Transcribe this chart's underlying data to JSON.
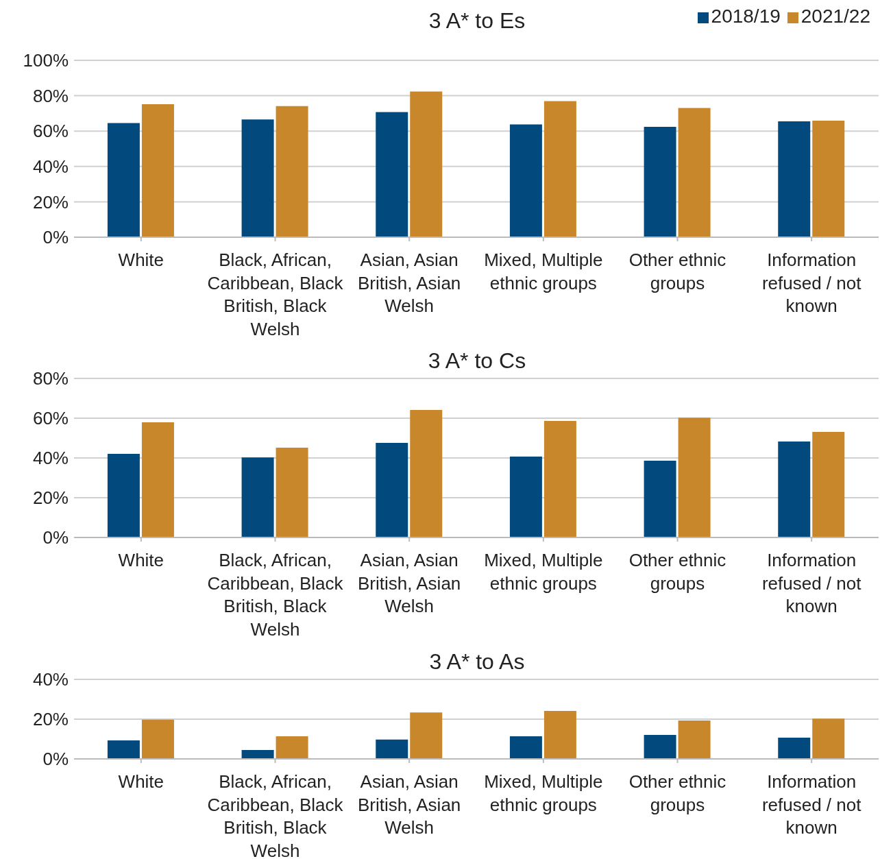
{
  "chart_data": [
    {
      "type": "bar",
      "title": "3 A* to Es",
      "categories": [
        "White",
        "Black, African, Caribbean, Black British, Black Welsh",
        "Asian, Asian British, Asian Welsh",
        "Mixed, Multiple ethnic groups",
        "Other ethnic groups",
        "Information refused / not known"
      ],
      "series": [
        {
          "name": "2018/19",
          "color": "#024a7d",
          "values": [
            64.5,
            66.6,
            70.7,
            63.8,
            62.4,
            65.5
          ]
        },
        {
          "name": "2021/22",
          "color": "#c8872b",
          "values": [
            75.2,
            74.1,
            82.4,
            76.9,
            73.1,
            65.9
          ]
        }
      ],
      "ylim": [
        0,
        100
      ],
      "yticks": [
        {
          "value": 0,
          "label": "0%"
        },
        {
          "value": 20,
          "label": "20%"
        },
        {
          "value": 40,
          "label": "40%"
        },
        {
          "value": 60,
          "label": "60%"
        },
        {
          "value": 80,
          "label": "80%"
        },
        {
          "value": 100,
          "label": "100%"
        }
      ],
      "grid": "y",
      "legend": "top right"
    },
    {
      "type": "bar",
      "title": "3 A* to Cs",
      "categories": [
        "White",
        "Black, African, Caribbean, Black British, Black Welsh",
        "Asian, Asian British, Asian Welsh",
        "Mixed, Multiple ethnic groups",
        "Other ethnic groups",
        "Information refused / not known"
      ],
      "series": [
        {
          "color": "#024a7d",
          "values": [
            42.1,
            40.3,
            47.6,
            40.7,
            38.6,
            48.3
          ]
        },
        {
          "color": "#c8872b",
          "values": [
            57.9,
            45.2,
            64.1,
            58.6,
            60.3,
            53.1
          ]
        }
      ],
      "ylim": [
        0,
        80
      ],
      "yticks": [
        {
          "value": 0,
          "label": "0%"
        },
        {
          "value": 20,
          "label": "20%"
        },
        {
          "value": 40,
          "label": "40%"
        },
        {
          "value": 60,
          "label": "60%"
        },
        {
          "value": 80,
          "label": "80%"
        }
      ],
      "grid": "y",
      "legend": false
    },
    {
      "type": "bar",
      "title": "3 A* to As",
      "categories": [
        "White",
        "Black, African, Caribbean, Black British, Black Welsh",
        "Asian, Asian British, Asian Welsh",
        "Mixed, Multiple ethnic groups",
        "Other ethnic groups",
        "Information refused / not known"
      ],
      "series": [
        {
          "color": "#024a7d",
          "values": [
            9.3,
            4.5,
            9.7,
            11.4,
            12.1,
            10.7
          ]
        },
        {
          "color": "#c8872b",
          "values": [
            19.7,
            11.4,
            23.4,
            24.1,
            19.3,
            20.3
          ]
        }
      ],
      "ylim": [
        0,
        40
      ],
      "yticks": [
        {
          "value": 0,
          "label": "0%"
        },
        {
          "value": 20,
          "label": "20%"
        },
        {
          "value": 40,
          "label": "40%"
        }
      ],
      "grid": "y",
      "legend": false
    }
  ]
}
